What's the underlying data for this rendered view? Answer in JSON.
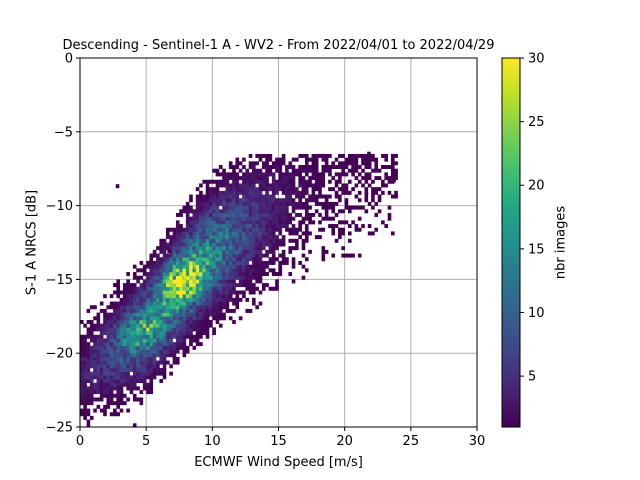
{
  "chart_data": {
    "type": "heatmap",
    "title": "Descending - Sentinel-1 A - WV2 - From 2022/04/01 to 2022/04/29",
    "xlabel": "ECMWF Wind Speed [m/s]",
    "ylabel": "S-1 A NRCS [dB]",
    "xlim": [
      0,
      30
    ],
    "ylim": [
      -25,
      0
    ],
    "xticks": [
      0,
      5,
      10,
      15,
      20,
      25,
      30
    ],
    "yticks": [
      -25,
      -20,
      -15,
      -10,
      -5,
      0
    ],
    "xtick_labels": [
      "0",
      "5",
      "10",
      "15",
      "20",
      "25",
      "30"
    ],
    "ytick_labels": [
      "−25",
      "−20",
      "−15",
      "−10",
      "−5",
      "0"
    ],
    "grid": true,
    "colormap": "viridis",
    "colorbar": {
      "label": "nbr images",
      "range": [
        1,
        30
      ],
      "ticks": [
        5,
        10,
        15,
        20,
        25,
        30
      ],
      "tick_labels": [
        "5",
        "10",
        "15",
        "20",
        "25",
        "30"
      ]
    },
    "bin_size": {
      "x": 0.25,
      "y": 0.25
    },
    "density_model": {
      "description": "2D histogram of counts; joint density concentrated along a linear ridge",
      "ridge_points": [
        [
          0,
          -21.5
        ],
        [
          5,
          -18.3
        ],
        [
          8,
          -15.0
        ],
        [
          10,
          -13.2
        ],
        [
          15,
          -10.0
        ],
        [
          20,
          -7.5
        ]
      ],
      "peak": {
        "x": 7.8,
        "y": -15.0,
        "count": 28
      },
      "secondary_peak": {
        "x": 4.5,
        "y": -18.5,
        "count": 17
      },
      "outliers": [
        [
          2.7,
          -8.8
        ],
        [
          23.6,
          -8.4
        ],
        [
          21.7,
          -6.6
        ],
        [
          4.0,
          -25.0
        ],
        [
          6.6,
          -13.2
        ],
        [
          21.5,
          -9.3
        ]
      ],
      "x_extent": [
        0,
        24
      ],
      "y_extent": [
        -25,
        -6.5
      ]
    }
  }
}
